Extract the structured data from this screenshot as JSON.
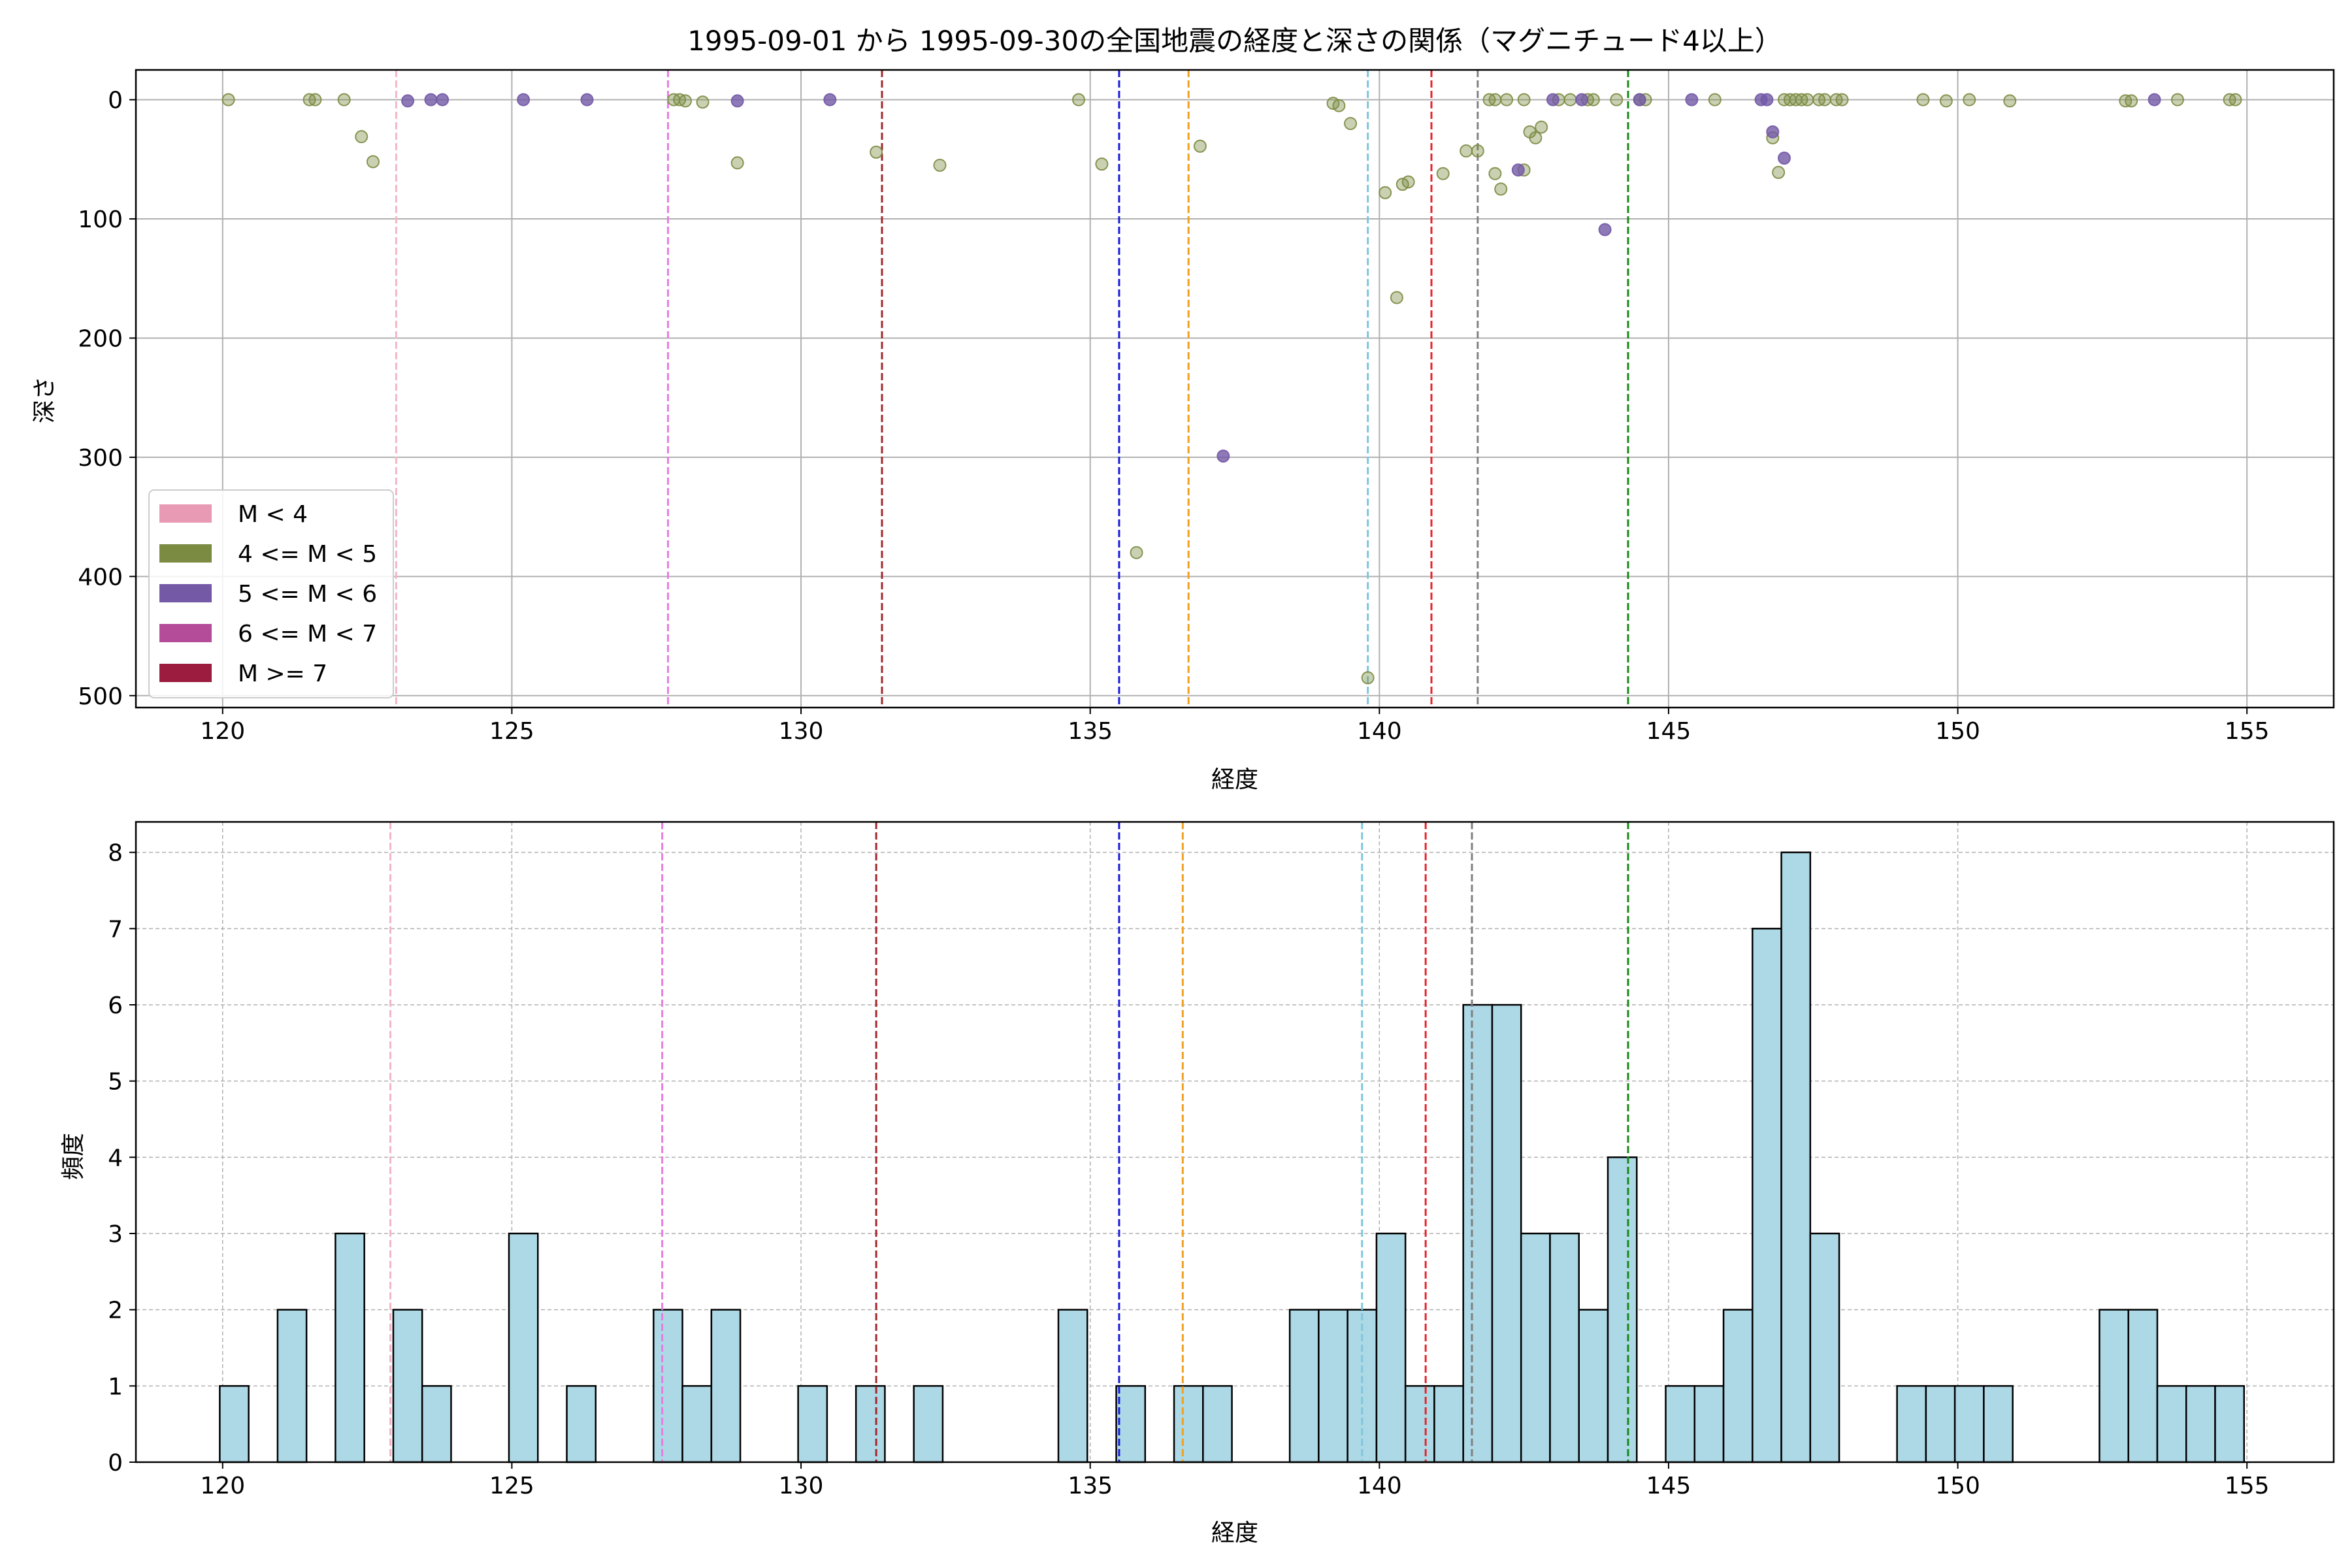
{
  "chart_data": [
    {
      "type": "scatter",
      "title": "1995-09-01 から 1995-09-30の全国地震の経度と深さの関係（マグニチュード4以上）",
      "xlabel": "経度",
      "ylabel": "深さ",
      "xlim": [
        118.5,
        156.5
      ],
      "ylim": [
        510,
        -25
      ],
      "y_inverted": true,
      "xticks": [
        "120",
        "125",
        "130",
        "135",
        "140",
        "145",
        "150",
        "155"
      ],
      "yticks": [
        "0",
        "100",
        "200",
        "300",
        "400",
        "500"
      ],
      "grid": true,
      "legend_position": "lower-left",
      "legend": [
        {
          "label": "M < 4",
          "color": "#e899b4"
        },
        {
          "label": "4 <= M < 5",
          "color": "#7b8b42"
        },
        {
          "label": "5 <= M < 6",
          "color": "#7359a6"
        },
        {
          "label": "6 <= M < 7",
          "color": "#b54c9a"
        },
        {
          "label": "M >= 7",
          "color": "#9b1c3e"
        }
      ],
      "series": [
        {
          "name": "4 <= M < 5",
          "color": "#7b8b42",
          "points": [
            [
              120.1,
              0
            ],
            [
              121.5,
              0
            ],
            [
              121.6,
              0
            ],
            [
              122.1,
              0
            ],
            [
              122.4,
              31
            ],
            [
              122.6,
              52
            ],
            [
              127.8,
              0
            ],
            [
              127.9,
              0
            ],
            [
              128.0,
              1
            ],
            [
              128.3,
              2
            ],
            [
              128.9,
              53
            ],
            [
              131.3,
              44
            ],
            [
              132.4,
              55
            ],
            [
              134.8,
              0
            ],
            [
              135.2,
              54
            ],
            [
              135.8,
              380
            ],
            [
              136.9,
              39
            ],
            [
              139.2,
              3
            ],
            [
              139.3,
              5
            ],
            [
              139.5,
              20
            ],
            [
              139.8,
              485
            ],
            [
              140.1,
              78
            ],
            [
              140.3,
              166
            ],
            [
              140.4,
              71
            ],
            [
              140.5,
              69
            ],
            [
              141.1,
              62
            ],
            [
              141.5,
              43
            ],
            [
              141.7,
              43
            ],
            [
              141.9,
              0
            ],
            [
              142.0,
              0
            ],
            [
              142.2,
              0
            ],
            [
              142.0,
              62
            ],
            [
              142.1,
              75
            ],
            [
              142.5,
              0
            ],
            [
              142.5,
              59
            ],
            [
              142.6,
              27
            ],
            [
              142.7,
              32
            ],
            [
              142.8,
              23
            ],
            [
              143.1,
              0
            ],
            [
              143.3,
              0
            ],
            [
              143.6,
              0
            ],
            [
              143.7,
              0
            ],
            [
              144.1,
              0
            ],
            [
              144.5,
              0
            ],
            [
              144.6,
              0
            ],
            [
              145.8,
              0
            ],
            [
              146.8,
              32
            ],
            [
              146.9,
              61
            ],
            [
              147.0,
              0
            ],
            [
              147.1,
              0
            ],
            [
              147.2,
              0
            ],
            [
              147.3,
              0
            ],
            [
              147.4,
              0
            ],
            [
              147.6,
              0
            ],
            [
              147.7,
              0
            ],
            [
              147.9,
              0
            ],
            [
              148.0,
              0
            ],
            [
              149.4,
              0
            ],
            [
              149.8,
              1
            ],
            [
              150.2,
              0
            ],
            [
              150.9,
              1
            ],
            [
              152.9,
              1
            ],
            [
              153.0,
              1
            ],
            [
              153.8,
              0
            ],
            [
              154.7,
              0
            ],
            [
              154.8,
              0
            ]
          ]
        },
        {
          "name": "5 <= M < 6",
          "color": "#7359a6",
          "points": [
            [
              123.2,
              1
            ],
            [
              123.6,
              0
            ],
            [
              123.8,
              0
            ],
            [
              125.2,
              0
            ],
            [
              126.3,
              0
            ],
            [
              128.9,
              1
            ],
            [
              130.5,
              0
            ],
            [
              137.3,
              299
            ],
            [
              142.4,
              59
            ],
            [
              143.0,
              0
            ],
            [
              143.5,
              0
            ],
            [
              143.9,
              109
            ],
            [
              144.5,
              0
            ],
            [
              145.4,
              0
            ],
            [
              146.6,
              0
            ],
            [
              146.7,
              0
            ],
            [
              146.8,
              27
            ],
            [
              147.0,
              49
            ],
            [
              153.4,
              0
            ]
          ]
        }
      ],
      "reference_lines": [
        {
          "x": 123.0,
          "color": "#f4b6c6"
        },
        {
          "x": 127.7,
          "color": "#e87ce0"
        },
        {
          "x": 131.4,
          "color": "#a3282c"
        },
        {
          "x": 135.5,
          "color": "#1a1adb"
        },
        {
          "x": 136.7,
          "color": "#f0a020"
        },
        {
          "x": 139.8,
          "color": "#7ec7dc"
        },
        {
          "x": 140.9,
          "color": "#e8242a"
        },
        {
          "x": 141.7,
          "color": "#808080"
        },
        {
          "x": 144.3,
          "color": "#188a18"
        }
      ]
    },
    {
      "type": "bar",
      "subtype": "histogram",
      "xlabel": "経度",
      "ylabel": "頻度",
      "xlim": [
        118.5,
        156.5
      ],
      "ylim": [
        0,
        8.4
      ],
      "xticks": [
        "120",
        "125",
        "130",
        "135",
        "140",
        "145",
        "150",
        "155"
      ],
      "yticks": [
        "0",
        "1",
        "2",
        "3",
        "4",
        "5",
        "6",
        "7",
        "8"
      ],
      "grid": true,
      "bar_color": "#add8e6",
      "bin_width": 0.5,
      "bins": [
        [
          120.2,
          1
        ],
        [
          121.2,
          2
        ],
        [
          122.2,
          3
        ],
        [
          123.2,
          2
        ],
        [
          123.7,
          1
        ],
        [
          125.2,
          3
        ],
        [
          126.2,
          1
        ],
        [
          127.7,
          2
        ],
        [
          128.2,
          1
        ],
        [
          128.7,
          2
        ],
        [
          130.2,
          1
        ],
        [
          131.2,
          1
        ],
        [
          132.2,
          1
        ],
        [
          134.7,
          2
        ],
        [
          135.7,
          1
        ],
        [
          136.7,
          1
        ],
        [
          137.2,
          1
        ],
        [
          138.7,
          2
        ],
        [
          139.2,
          2
        ],
        [
          139.7,
          2
        ],
        [
          140.2,
          3
        ],
        [
          140.7,
          1
        ],
        [
          141.2,
          1
        ],
        [
          141.7,
          6
        ],
        [
          142.2,
          6
        ],
        [
          142.7,
          3
        ],
        [
          143.2,
          3
        ],
        [
          143.7,
          2
        ],
        [
          144.2,
          4
        ],
        [
          145.2,
          1
        ],
        [
          145.7,
          1
        ],
        [
          146.2,
          2
        ],
        [
          146.7,
          7
        ],
        [
          147.2,
          8
        ],
        [
          147.7,
          3
        ],
        [
          149.2,
          1
        ],
        [
          149.7,
          1
        ],
        [
          150.2,
          1
        ],
        [
          150.7,
          1
        ],
        [
          152.7,
          2
        ],
        [
          153.2,
          2
        ],
        [
          153.7,
          1
        ],
        [
          154.2,
          1
        ],
        [
          154.7,
          1
        ]
      ],
      "reference_lines": [
        {
          "x": 122.9,
          "color": "#f4b6c6"
        },
        {
          "x": 127.6,
          "color": "#e87ce0"
        },
        {
          "x": 131.3,
          "color": "#a3282c"
        },
        {
          "x": 135.5,
          "color": "#1a1adb"
        },
        {
          "x": 136.6,
          "color": "#f0a020"
        },
        {
          "x": 139.7,
          "color": "#7ec7dc"
        },
        {
          "x": 140.8,
          "color": "#e8242a"
        },
        {
          "x": 141.6,
          "color": "#808080"
        },
        {
          "x": 144.3,
          "color": "#188a18"
        }
      ]
    }
  ]
}
